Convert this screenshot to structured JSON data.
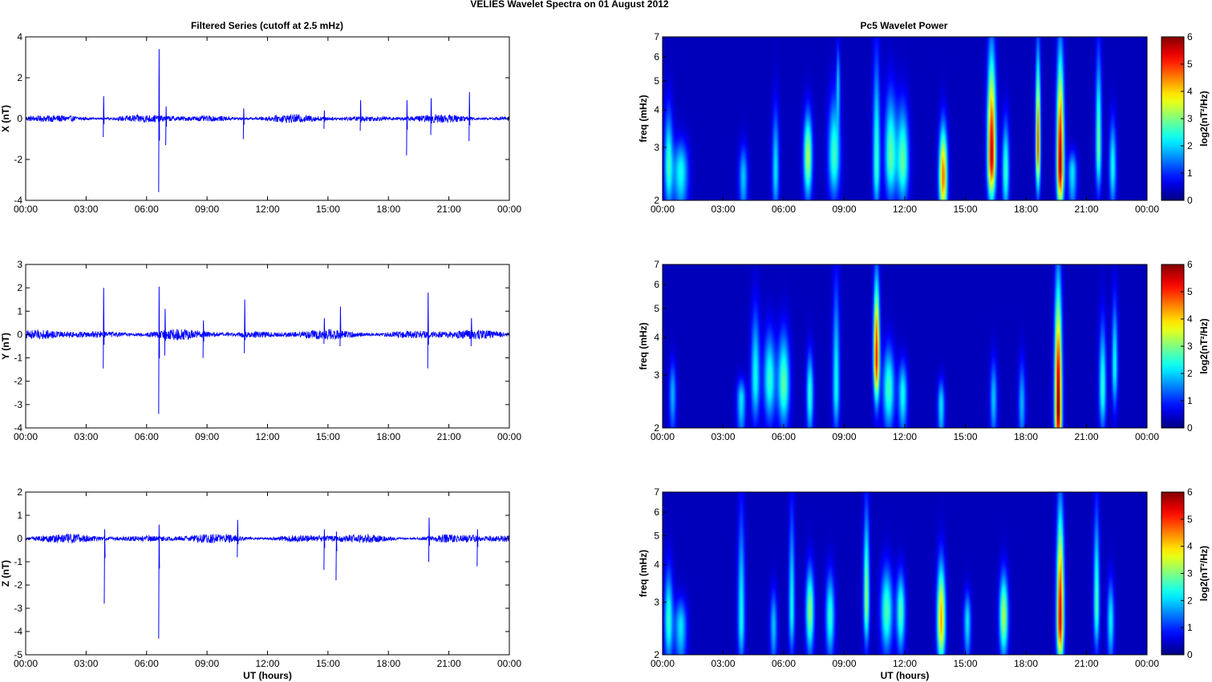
{
  "figure": {
    "title": "VELIES Wavelet Spectra on 01 August    2012",
    "left_title": "Filtered Series (cutoff at 2.5 mHz)",
    "right_title": "Pc5 Wavelet Power",
    "colormap": "jet",
    "trace_color": "#0000ff"
  },
  "chart_data": [
    {
      "type": "line",
      "title": "Filtered Series (cutoff at 2.5 mHz)",
      "ylabel": "X (nT)",
      "xlabel": "",
      "xlim": [
        0,
        24
      ],
      "ylim": [
        -4,
        4
      ],
      "xticks": [
        "00:00",
        "03:00",
        "06:00",
        "09:00",
        "12:00",
        "15:00",
        "18:00",
        "21:00",
        "00:00"
      ],
      "yticks": [
        -4,
        -2,
        0,
        2,
        4
      ],
      "grid": false,
      "noise_amplitude": 0.18,
      "spikes": [
        {
          "x": 3.85,
          "max": 1.1,
          "min": -0.9
        },
        {
          "x": 6.6,
          "max": 3.4,
          "min": -3.6
        },
        {
          "x": 6.95,
          "max": 0.6,
          "min": -1.3
        },
        {
          "x": 10.8,
          "max": 0.5,
          "min": -1.0
        },
        {
          "x": 14.8,
          "max": 0.4,
          "min": -0.5
        },
        {
          "x": 16.6,
          "max": 0.9,
          "min": -0.6
        },
        {
          "x": 18.9,
          "max": 0.9,
          "min": -1.8
        },
        {
          "x": 20.1,
          "max": 1.0,
          "min": -0.8
        },
        {
          "x": 22.0,
          "max": 1.3,
          "min": -1.1
        }
      ]
    },
    {
      "type": "line",
      "title": "",
      "ylabel": "Y (nT)",
      "xlabel": "",
      "xlim": [
        0,
        24
      ],
      "ylim": [
        -4,
        3
      ],
      "xticks": [
        "00:00",
        "03:00",
        "06:00",
        "09:00",
        "12:00",
        "15:00",
        "18:00",
        "21:00",
        "00:00"
      ],
      "yticks": [
        -4,
        -3,
        -2,
        -1,
        0,
        1,
        2,
        3
      ],
      "grid": false,
      "noise_amplitude": 0.2,
      "spikes": [
        {
          "x": 3.85,
          "max": 2.0,
          "min": -1.45
        },
        {
          "x": 6.6,
          "max": 2.05,
          "min": -3.4
        },
        {
          "x": 6.9,
          "max": 1.1,
          "min": -0.9
        },
        {
          "x": 8.8,
          "max": 0.6,
          "min": -1.0
        },
        {
          "x": 10.85,
          "max": 1.5,
          "min": -0.8
        },
        {
          "x": 14.8,
          "max": 0.7,
          "min": -0.4
        },
        {
          "x": 15.6,
          "max": 1.2,
          "min": -0.5
        },
        {
          "x": 19.95,
          "max": 1.8,
          "min": -1.45
        },
        {
          "x": 22.1,
          "max": 0.7,
          "min": -0.5
        }
      ]
    },
    {
      "type": "line",
      "title": "",
      "ylabel": "Z (nT)",
      "xlabel": "UT (hours)",
      "xlim": [
        0,
        24
      ],
      "ylim": [
        -5,
        2
      ],
      "xticks": [
        "00:00",
        "03:00",
        "06:00",
        "09:00",
        "12:00",
        "15:00",
        "18:00",
        "21:00",
        "00:00"
      ],
      "yticks": [
        -5,
        -4,
        -3,
        -2,
        -1,
        0,
        1,
        2
      ],
      "grid": false,
      "noise_amplitude": 0.18,
      "spikes": [
        {
          "x": 3.9,
          "max": 0.4,
          "min": -2.8
        },
        {
          "x": 6.6,
          "max": 0.6,
          "min": -4.3
        },
        {
          "x": 10.5,
          "max": 0.8,
          "min": -0.8
        },
        {
          "x": 14.8,
          "max": 0.4,
          "min": -1.35
        },
        {
          "x": 15.4,
          "max": 0.3,
          "min": -1.8
        },
        {
          "x": 20.0,
          "max": 0.9,
          "min": -1.0
        },
        {
          "x": 22.4,
          "max": 0.4,
          "min": -1.2
        }
      ]
    },
    {
      "type": "heatmap",
      "title": "Pc5 Wavelet Power",
      "ylabel": "freq (mHz)",
      "xlabel": "",
      "xlim": [
        0,
        24
      ],
      "ylim": [
        2,
        7
      ],
      "yscale": "log",
      "xticks": [
        "00:00",
        "03:00",
        "06:00",
        "09:00",
        "12:00",
        "15:00",
        "18:00",
        "21:00",
        "00:00"
      ],
      "yticks": [
        2,
        3,
        4,
        5,
        6,
        7
      ],
      "colorbar": {
        "label": "log2(nT²/Hz)",
        "min": 0,
        "max": 6,
        "ticks": [
          0,
          1,
          2,
          3,
          4,
          5,
          6
        ]
      },
      "features": [
        {
          "t": 0.3,
          "f": 2.6,
          "peak": 2.2,
          "w": 0.15,
          "top": 4.4
        },
        {
          "t": 0.9,
          "f": 2.5,
          "peak": 2.0,
          "w": 0.25,
          "top": 3.3
        },
        {
          "t": 4.0,
          "f": 2.4,
          "peak": 1.6,
          "w": 0.15,
          "top": 3.2
        },
        {
          "t": 5.6,
          "f": 2.5,
          "peak": 1.8,
          "w": 0.12,
          "top": 4.5
        },
        {
          "t": 7.2,
          "f": 2.8,
          "peak": 3.0,
          "w": 0.15,
          "top": 4.2
        },
        {
          "t": 8.5,
          "f": 2.8,
          "peak": 2.3,
          "w": 0.2,
          "top": 4.8
        },
        {
          "t": 8.7,
          "f": 5.0,
          "peak": 1.5,
          "w": 0.06,
          "top": 7.0
        },
        {
          "t": 10.6,
          "f": 2.6,
          "peak": 2.3,
          "w": 0.12,
          "top": 7.0
        },
        {
          "t": 11.3,
          "f": 2.8,
          "peak": 2.5,
          "w": 0.2,
          "top": 5.0
        },
        {
          "t": 11.9,
          "f": 2.7,
          "peak": 2.5,
          "w": 0.2,
          "top": 4.5
        },
        {
          "t": 13.9,
          "f": 2.4,
          "peak": 4.3,
          "w": 0.14,
          "top": 3.8
        },
        {
          "t": 16.3,
          "f": 2.8,
          "peak": 5.3,
          "w": 0.14,
          "top": 7.0
        },
        {
          "t": 17.0,
          "f": 2.5,
          "peak": 2.3,
          "w": 0.12,
          "top": 4.0
        },
        {
          "t": 18.6,
          "f": 3.0,
          "peak": 4.5,
          "w": 0.08,
          "top": 7.0
        },
        {
          "t": 19.7,
          "f": 2.6,
          "peak": 5.5,
          "w": 0.12,
          "top": 7.0
        },
        {
          "t": 20.3,
          "f": 2.5,
          "peak": 1.8,
          "w": 0.15,
          "top": 3.0
        },
        {
          "t": 21.6,
          "f": 3.0,
          "peak": 2.6,
          "w": 0.1,
          "top": 7.0
        },
        {
          "t": 22.3,
          "f": 2.6,
          "peak": 2.0,
          "w": 0.12,
          "top": 4.0
        }
      ]
    },
    {
      "type": "heatmap",
      "title": "",
      "ylabel": "freq (mHz)",
      "xlabel": "",
      "xlim": [
        0,
        24
      ],
      "ylim": [
        2,
        7
      ],
      "yscale": "log",
      "xticks": [
        "00:00",
        "03:00",
        "06:00",
        "09:00",
        "12:00",
        "15:00",
        "18:00",
        "21:00",
        "00:00"
      ],
      "yticks": [
        2,
        3,
        4,
        5,
        6,
        7
      ],
      "colorbar": {
        "label": "log2(nT²/Hz)",
        "min": 0,
        "max": 6,
        "ticks": [
          0,
          1,
          2,
          3,
          4,
          5,
          6
        ]
      },
      "features": [
        {
          "t": 0.5,
          "f": 2.6,
          "peak": 1.5,
          "w": 0.12,
          "top": 3.5
        },
        {
          "t": 3.9,
          "f": 2.5,
          "peak": 1.8,
          "w": 0.15,
          "top": 3.0
        },
        {
          "t": 4.6,
          "f": 2.9,
          "peak": 2.0,
          "w": 0.15,
          "top": 5.5
        },
        {
          "t": 5.3,
          "f": 2.9,
          "peak": 2.2,
          "w": 0.2,
          "top": 4.5
        },
        {
          "t": 6.0,
          "f": 2.8,
          "peak": 2.5,
          "w": 0.2,
          "top": 4.5
        },
        {
          "t": 7.3,
          "f": 2.6,
          "peak": 2.2,
          "w": 0.12,
          "top": 3.8
        },
        {
          "t": 8.6,
          "f": 2.7,
          "peak": 2.0,
          "w": 0.12,
          "top": 7.0
        },
        {
          "t": 10.6,
          "f": 3.4,
          "peak": 5.0,
          "w": 0.1,
          "top": 7.0
        },
        {
          "t": 11.2,
          "f": 2.7,
          "peak": 2.3,
          "w": 0.2,
          "top": 4.0
        },
        {
          "t": 11.9,
          "f": 2.6,
          "peak": 2.0,
          "w": 0.15,
          "top": 3.5
        },
        {
          "t": 13.8,
          "f": 2.4,
          "peak": 1.8,
          "w": 0.12,
          "top": 3.0
        },
        {
          "t": 16.4,
          "f": 2.5,
          "peak": 1.6,
          "w": 0.12,
          "top": 3.6
        },
        {
          "t": 17.8,
          "f": 2.4,
          "peak": 1.5,
          "w": 0.12,
          "top": 3.6
        },
        {
          "t": 19.6,
          "f": 2.3,
          "peak": 5.8,
          "w": 0.12,
          "top": 7.0
        },
        {
          "t": 21.8,
          "f": 2.7,
          "peak": 2.2,
          "w": 0.12,
          "top": 5.0
        },
        {
          "t": 22.4,
          "f": 3.2,
          "peak": 2.0,
          "w": 0.1,
          "top": 6.0
        }
      ]
    },
    {
      "type": "heatmap",
      "title": "",
      "ylabel": "freq (mHz)",
      "xlabel": "UT (hours)",
      "xlim": [
        0,
        24
      ],
      "ylim": [
        2,
        7
      ],
      "yscale": "log",
      "xticks": [
        "00:00",
        "03:00",
        "06:00",
        "09:00",
        "12:00",
        "15:00",
        "18:00",
        "21:00",
        "00:00"
      ],
      "yticks": [
        2,
        3,
        4,
        5,
        6,
        7
      ],
      "colorbar": {
        "label": "log2(nT²/Hz)",
        "min": 0,
        "max": 6,
        "ticks": [
          0,
          1,
          2,
          3,
          4,
          5,
          6
        ]
      },
      "features": [
        {
          "t": 0.3,
          "f": 2.6,
          "peak": 2.2,
          "w": 0.15,
          "top": 4.2
        },
        {
          "t": 0.9,
          "f": 2.5,
          "peak": 1.8,
          "w": 0.2,
          "top": 3.2
        },
        {
          "t": 3.9,
          "f": 2.6,
          "peak": 2.0,
          "w": 0.12,
          "top": 7.0
        },
        {
          "t": 5.5,
          "f": 2.5,
          "peak": 1.6,
          "w": 0.12,
          "top": 3.5
        },
        {
          "t": 6.4,
          "f": 2.8,
          "peak": 2.0,
          "w": 0.1,
          "top": 7.0
        },
        {
          "t": 7.3,
          "f": 2.8,
          "peak": 2.8,
          "w": 0.14,
          "top": 4.2
        },
        {
          "t": 8.3,
          "f": 2.7,
          "peak": 2.2,
          "w": 0.15,
          "top": 4.0
        },
        {
          "t": 10.1,
          "f": 3.0,
          "peak": 2.8,
          "w": 0.1,
          "top": 7.0
        },
        {
          "t": 11.1,
          "f": 2.8,
          "peak": 2.4,
          "w": 0.2,
          "top": 4.2
        },
        {
          "t": 11.8,
          "f": 2.8,
          "peak": 2.4,
          "w": 0.15,
          "top": 4.0
        },
        {
          "t": 13.8,
          "f": 2.6,
          "peak": 4.0,
          "w": 0.14,
          "top": 4.4
        },
        {
          "t": 15.1,
          "f": 2.6,
          "peak": 1.8,
          "w": 0.12,
          "top": 3.4
        },
        {
          "t": 16.9,
          "f": 2.7,
          "peak": 3.0,
          "w": 0.15,
          "top": 4.0
        },
        {
          "t": 19.7,
          "f": 2.6,
          "peak": 5.2,
          "w": 0.12,
          "top": 7.0
        },
        {
          "t": 21.5,
          "f": 2.9,
          "peak": 2.4,
          "w": 0.1,
          "top": 7.0
        },
        {
          "t": 22.2,
          "f": 2.6,
          "peak": 1.9,
          "w": 0.12,
          "top": 3.8
        }
      ]
    }
  ]
}
